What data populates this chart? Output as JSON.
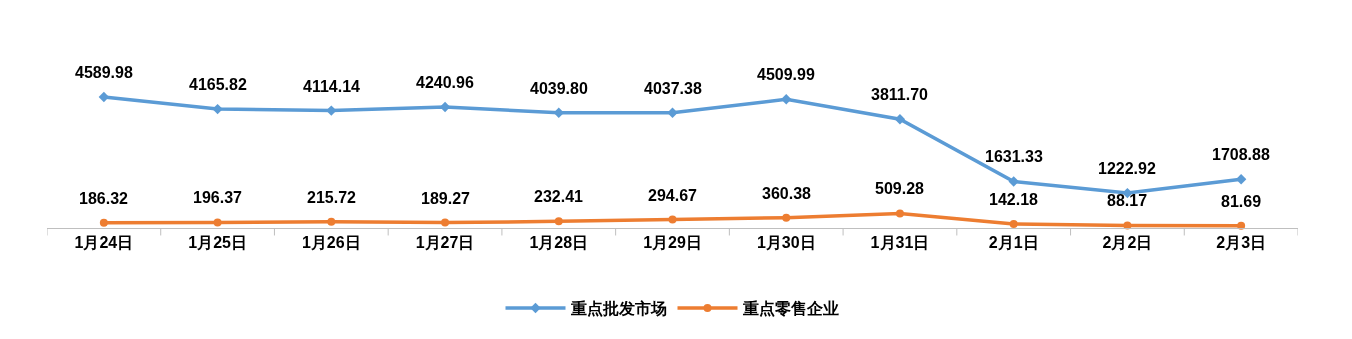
{
  "chart_data": {
    "type": "line",
    "categories": [
      "1月24日",
      "1月25日",
      "1月26日",
      "1月27日",
      "1月28日",
      "1月29日",
      "1月30日",
      "1月31日",
      "2月1日",
      "2月2日",
      "2月3日"
    ],
    "series": [
      {
        "name": "重点批发市场",
        "color": "#5b9bd5",
        "marker": "diamond",
        "values": [
          4589.98,
          4165.82,
          4114.14,
          4240.96,
          4039.8,
          4037.38,
          4509.99,
          3811.7,
          1631.33,
          1222.92,
          1708.88
        ],
        "value_labels": [
          "4589.98",
          "4165.82",
          "4114.14",
          "4240.96",
          "4039.80",
          "4037.38",
          "4509.99",
          "3811.70",
          "1631.33",
          "1222.92",
          "1708.88"
        ]
      },
      {
        "name": "重点零售企业",
        "color": "#ed7d31",
        "marker": "circle",
        "values": [
          186.32,
          196.37,
          215.72,
          189.27,
          232.41,
          294.67,
          360.38,
          509.28,
          142.18,
          88.17,
          81.69
        ],
        "value_labels": [
          "186.32",
          "196.37",
          "215.72",
          "189.27",
          "232.41",
          "294.67",
          "360.38",
          "509.28",
          "142.18",
          "88.17",
          "81.69"
        ]
      }
    ],
    "grid": false,
    "legend": "bottom",
    "line_style": "solid",
    "tick_labels": "x"
  }
}
